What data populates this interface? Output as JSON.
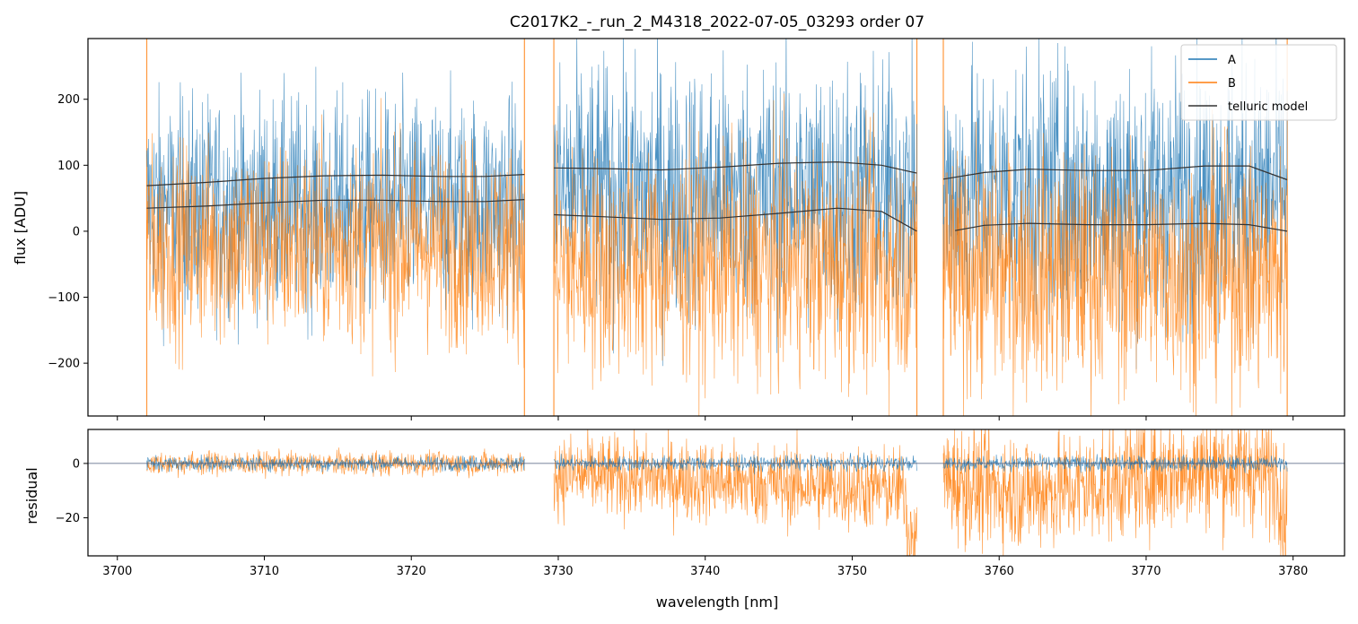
{
  "chart_data": [
    {
      "type": "line",
      "panel": "flux",
      "title": "C2017K2_-_run_2_M4318_2022-07-05_03293  order 07",
      "xlabel": "",
      "ylabel": "flux [ADU]",
      "xlim": [
        3698,
        3783.5
      ],
      "ylim": [
        -280,
        292
      ],
      "yticks": [
        200,
        100,
        0,
        -100,
        -200
      ],
      "ytick_labels": [
        "200",
        "100",
        "0",
        "−100",
        "−200"
      ],
      "xticks": [
        3700,
        3710,
        3720,
        3730,
        3740,
        3750,
        3760,
        3770,
        3780
      ],
      "legend": {
        "location": "top-right",
        "entries": [
          {
            "label": "A",
            "color": "#1f77b4"
          },
          {
            "label": "B",
            "color": "#ff7f0e"
          },
          {
            "label": "telluric model",
            "color": "#333333"
          }
        ]
      },
      "segments": [
        {
          "range": [
            3702.0,
            3727.7
          ],
          "A_mean": 40,
          "A_spread": 150,
          "B_mean": -20,
          "B_spread": 140
        },
        {
          "range": [
            3729.7,
            3754.4
          ],
          "A_mean": 60,
          "A_spread": 180,
          "B_mean": -50,
          "B_spread": 160
        },
        {
          "range": [
            3756.2,
            3779.6
          ],
          "A_mean": 60,
          "A_spread": 180,
          "B_mean": -60,
          "B_spread": 165
        }
      ],
      "series": [
        {
          "name": "telluric model (A)",
          "segments": [
            {
              "x": [
                3702.0,
                3706.0,
                3710.0,
                3714.0,
                3718.0,
                3722.0,
                3725.0,
                3727.7
              ],
              "y": [
                69,
                74,
                80,
                84,
                85,
                83,
                83,
                86
              ]
            },
            {
              "x": [
                3729.7,
                3733.0,
                3737.0,
                3741.0,
                3745.0,
                3749.0,
                3752.0,
                3754.4
              ],
              "y": [
                96,
                95,
                93,
                97,
                103,
                105,
                100,
                88
              ]
            },
            {
              "x": [
                3756.2,
                3759.0,
                3762.0,
                3766.0,
                3770.0,
                3774.0,
                3777.0,
                3779.6
              ],
              "y": [
                79,
                89,
                94,
                92,
                92,
                99,
                99,
                78
              ]
            }
          ]
        },
        {
          "name": "telluric model (B)",
          "segments": [
            {
              "x": [
                3702.0,
                3706.0,
                3710.0,
                3714.0,
                3718.0,
                3722.0,
                3725.0,
                3727.7
              ],
              "y": [
                35,
                38,
                43,
                47,
                47,
                45,
                45,
                48
              ]
            },
            {
              "x": [
                3729.7,
                3733.0,
                3737.0,
                3741.0,
                3745.0,
                3749.0,
                3752.0,
                3754.4
              ],
              "y": [
                25,
                22,
                18,
                20,
                27,
                35,
                30,
                0
              ]
            },
            {
              "x": [
                3757.0,
                3759.0,
                3762.0,
                3766.0,
                3770.0,
                3774.0,
                3777.0,
                3779.6
              ],
              "y": [
                1,
                9,
                12,
                10,
                10,
                12,
                10,
                0
              ]
            }
          ]
        }
      ]
    },
    {
      "type": "line",
      "panel": "residual",
      "xlabel": "wavelength [nm]",
      "ylabel": "residual",
      "xlim": [
        3698,
        3783.5
      ],
      "ylim": [
        -34,
        12.5
      ],
      "yticks": [
        0,
        -20
      ],
      "ytick_labels": [
        "0",
        "−20"
      ],
      "xticks": [
        3700,
        3710,
        3720,
        3730,
        3740,
        3750,
        3760,
        3770,
        3780
      ],
      "xtick_labels": [
        "3700",
        "3710",
        "3720",
        "3730",
        "3740",
        "3750",
        "3760",
        "3770",
        "3780"
      ],
      "zero_line": 0,
      "segments": [
        {
          "range": [
            3702.0,
            3727.7
          ],
          "A_spread": 2.5,
          "B_offset": 0,
          "B_spread": 4
        },
        {
          "range": [
            3729.7,
            3754.4
          ],
          "A_spread": 2.5,
          "B_offset": -5,
          "B_spread": 14
        },
        {
          "range": [
            3756.2,
            3779.6
          ],
          "A_spread": 2.5,
          "B_offset": -10,
          "B_spread": 20
        }
      ]
    }
  ],
  "colors": {
    "A": "#1f77b4",
    "B": "#ff7f0e",
    "model": "#333333",
    "zero_line": "#4a5a7a"
  }
}
